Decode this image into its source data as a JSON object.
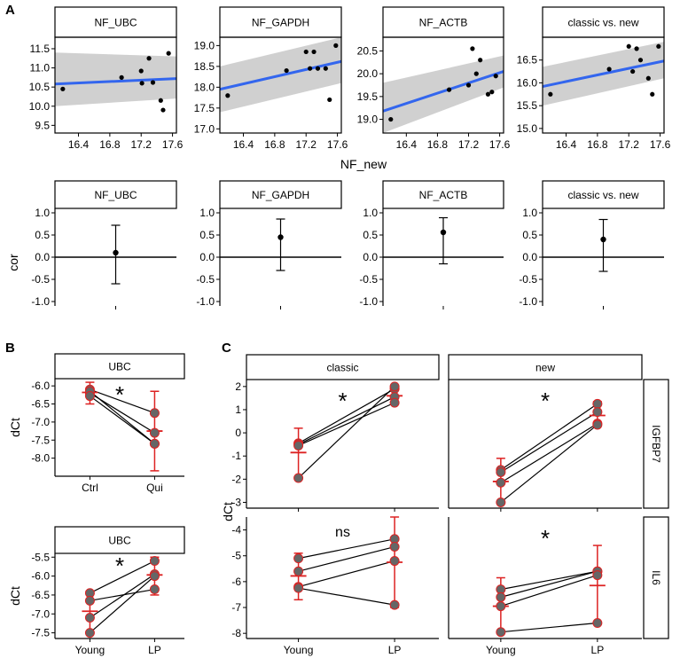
{
  "chart_data": [
    {
      "panel": "A",
      "row": "top",
      "type": "scatter",
      "xlabel": "NF_new",
      "x_ticks": [
        16.4,
        16.8,
        17.2,
        17.6
      ],
      "facets": [
        {
          "strip": "NF_UBC",
          "ylim": [
            9.3,
            11.8
          ],
          "y_ticks": [
            9.5,
            10.0,
            10.5,
            11.0,
            11.5
          ],
          "x": [
            16.2,
            16.95,
            17.2,
            17.21,
            17.3,
            17.35,
            17.45,
            17.48,
            17.55
          ],
          "y": [
            10.45,
            10.75,
            10.92,
            10.6,
            11.25,
            10.62,
            10.15,
            9.9,
            11.38
          ],
          "fit": [
            10.58,
            10.72
          ],
          "band_lo": [
            10.0,
            10.2
          ],
          "band_hi": [
            11.4,
            11.3
          ]
        },
        {
          "strip": "NF_GAPDH",
          "ylim": [
            16.9,
            19.2
          ],
          "y_ticks": [
            17.0,
            17.5,
            18.0,
            18.5,
            19.0
          ],
          "x": [
            16.2,
            16.95,
            17.2,
            17.25,
            17.3,
            17.35,
            17.45,
            17.5,
            17.58
          ],
          "y": [
            17.8,
            18.4,
            18.85,
            18.45,
            18.85,
            18.45,
            18.45,
            17.7,
            19.0
          ],
          "fit": [
            17.95,
            18.62
          ],
          "band_lo": [
            17.4,
            18.1
          ],
          "band_hi": [
            18.5,
            19.2
          ]
        },
        {
          "strip": "NF_ACTB",
          "ylim": [
            18.7,
            20.8
          ],
          "y_ticks": [
            19.0,
            19.5,
            20.0,
            20.5
          ],
          "x": [
            16.2,
            16.95,
            17.2,
            17.25,
            17.3,
            17.35,
            17.45,
            17.5,
            17.55
          ],
          "y": [
            19.0,
            19.65,
            19.75,
            20.55,
            20.0,
            20.3,
            19.55,
            19.6,
            19.95
          ],
          "fit": [
            19.18,
            20.05
          ],
          "band_lo": [
            18.7,
            19.7
          ],
          "band_hi": [
            19.8,
            20.4
          ]
        },
        {
          "strip": "classic vs. new",
          "ylim": [
            14.9,
            17.0
          ],
          "y_ticks": [
            15.0,
            15.5,
            16.0,
            16.5
          ],
          "x": [
            16.2,
            16.95,
            17.2,
            17.25,
            17.3,
            17.35,
            17.45,
            17.5,
            17.58
          ],
          "y": [
            15.75,
            16.3,
            16.8,
            16.25,
            16.75,
            16.5,
            16.1,
            15.75,
            16.8
          ],
          "fit": [
            15.92,
            16.48
          ],
          "band_lo": [
            15.5,
            16.1
          ],
          "band_hi": [
            16.35,
            16.9
          ]
        }
      ]
    },
    {
      "panel": "A",
      "row": "bottom",
      "type": "errorbar",
      "ylabel": "cor",
      "ylim": [
        -1.1,
        1.1
      ],
      "y_ticks": [
        1.0,
        0.5,
        0.0,
        -0.5,
        -1.0
      ],
      "facets": [
        {
          "strip": "NF_UBC",
          "estimate": 0.1,
          "lower": -0.6,
          "upper": 0.72
        },
        {
          "strip": "NF_GAPDH",
          "estimate": 0.45,
          "lower": -0.3,
          "upper": 0.86
        },
        {
          "strip": "NF_ACTB",
          "estimate": 0.56,
          "lower": -0.15,
          "upper": 0.89
        },
        {
          "strip": "classic vs. new",
          "estimate": 0.4,
          "lower": -0.32,
          "upper": 0.85
        }
      ]
    },
    {
      "panel": "B",
      "type": "paired",
      "strip": "UBC",
      "ylabel": "dCt",
      "categories": [
        "Ctrl",
        "Qui"
      ],
      "ylim": [
        -8.5,
        -5.8
      ],
      "y_ticks": [
        -6.0,
        -6.5,
        -7.0,
        -7.5,
        -8.0
      ],
      "annotation": "*",
      "pairs": [
        [
          -6.1,
          -6.75
        ],
        [
          -6.2,
          -7.3
        ],
        [
          -6.15,
          -7.6
        ],
        [
          -6.28,
          -7.6
        ]
      ],
      "summary": [
        {
          "mean": -6.18,
          "lower": -6.5,
          "upper": -5.9
        },
        {
          "mean": -7.25,
          "lower": -8.35,
          "upper": -6.15
        }
      ]
    },
    {
      "panel": "B",
      "type": "paired",
      "strip": "UBC",
      "ylabel": "dCt",
      "categories": [
        "Young",
        "LP"
      ],
      "ylim": [
        -7.65,
        -5.4
      ],
      "y_ticks": [
        -5.5,
        -6.0,
        -6.5,
        -7.0,
        -7.5
      ],
      "annotation": "*",
      "pairs": [
        [
          -6.45,
          -5.6
        ],
        [
          -6.65,
          -6.35
        ],
        [
          -7.1,
          -5.95
        ],
        [
          -7.5,
          -6.0
        ]
      ],
      "summary": [
        {
          "mean": -6.93,
          "lower": -7.5,
          "upper": -6.4
        },
        {
          "mean": -5.97,
          "lower": -6.5,
          "upper": -5.5
        }
      ]
    },
    {
      "panel": "C",
      "type": "paired",
      "ylabel": "dCt",
      "categories": [
        "Young",
        "LP"
      ],
      "columns": [
        "classic",
        "new"
      ],
      "rows": [
        "IGFBP7",
        "IL6"
      ],
      "facets": [
        {
          "row": "IGFBP7",
          "column": "classic",
          "annotation": "*",
          "ylim": [
            -3.25,
            2.3
          ],
          "y_ticks": [
            2,
            1,
            0,
            -1,
            -2,
            -3
          ],
          "pairs": [
            [
              -0.45,
              1.9
            ],
            [
              -0.5,
              1.55
            ],
            [
              -0.55,
              1.3
            ],
            [
              -1.95,
              2.0
            ]
          ],
          "summary": [
            {
              "mean": -0.85,
              "lower": -2.0,
              "upper": 0.2
            },
            {
              "mean": 1.6,
              "lower": 1.25,
              "upper": 2.0
            }
          ]
        },
        {
          "row": "IGFBP7",
          "column": "new",
          "annotation": "*",
          "ylim": [
            -3.25,
            2.3
          ],
          "y_ticks": [
            2,
            1,
            0,
            -1,
            -2,
            -3
          ],
          "pairs": [
            [
              -1.6,
              1.25
            ],
            [
              -1.7,
              0.9
            ],
            [
              -2.15,
              0.4
            ],
            [
              -3.0,
              0.35
            ]
          ],
          "summary": [
            {
              "mean": -2.1,
              "lower": -3.0,
              "upper": -1.1
            },
            {
              "mean": 0.75,
              "lower": 0.3,
              "upper": 1.35
            }
          ]
        },
        {
          "row": "IL6",
          "column": "classic",
          "annotation": "ns",
          "ylim": [
            -8.2,
            -3.5
          ],
          "y_ticks": [
            -4,
            -5,
            -6,
            -7,
            -8
          ],
          "pairs": [
            [
              -5.1,
              -4.35
            ],
            [
              -5.6,
              -4.65
            ],
            [
              -6.2,
              -5.2
            ],
            [
              -6.25,
              -6.9
            ]
          ],
          "summary": [
            {
              "mean": -5.78,
              "lower": -6.7,
              "upper": -4.9
            },
            {
              "mean": -5.25,
              "lower": -7.0,
              "upper": -3.5
            }
          ]
        },
        {
          "row": "IL6",
          "column": "new",
          "annotation": "*",
          "ylim": [
            -8.2,
            -3.5
          ],
          "y_ticks": [
            -4,
            -5,
            -6,
            -7,
            -8
          ],
          "pairs": [
            [
              -6.3,
              -5.6
            ],
            [
              -6.6,
              -5.6
            ],
            [
              -6.95,
              -5.75
            ],
            [
              -7.95,
              -7.6
            ]
          ],
          "summary": [
            {
              "mean": -6.95,
              "lower": -7.95,
              "upper": -5.85
            },
            {
              "mean": -6.15,
              "lower": -7.6,
              "upper": -4.6
            }
          ]
        }
      ]
    }
  ],
  "panel_labels": {
    "a": "A",
    "b": "B",
    "c": "C"
  },
  "colors": {
    "fit_line": "#3366ee",
    "band": "#c8c8c8",
    "point": "#000000",
    "summary": "#dd2222",
    "paired_point": "#666666"
  }
}
